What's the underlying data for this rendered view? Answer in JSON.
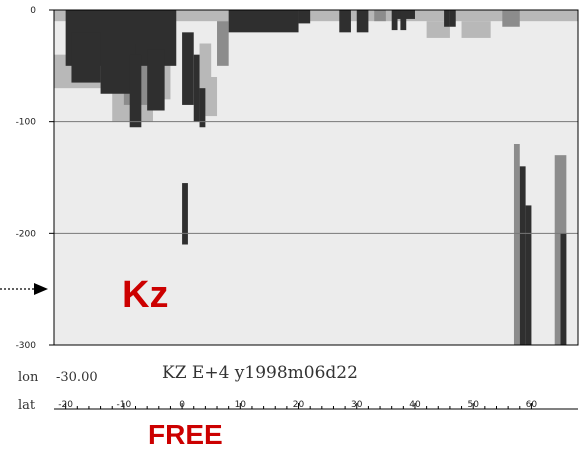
{
  "chart_data": {
    "type": "heatmap",
    "title": "KZ E+4 y1998m06d22",
    "colors": {
      "low": "#ececec",
      "mid": "#b8b8b8",
      "dark": "#8c8c8c",
      "darkest": "#2f2f2f",
      "annotation": "#cc0000",
      "frame": "#000000"
    },
    "xlabel": "lat",
    "ylabel": "",
    "xlim": [
      -22,
      68
    ],
    "ylim": [
      -300,
      0
    ],
    "x_ticks": [
      -20,
      -10,
      0,
      10,
      20,
      30,
      40,
      50,
      60
    ],
    "y_ticks": [
      0,
      -100,
      -200,
      -300
    ],
    "grid": "horizontal",
    "fixed_coordinate": {
      "label": "lon",
      "value": "-30.00"
    },
    "series": [],
    "regions": [
      {
        "level": "low",
        "x": [
          -22,
          68
        ],
        "y": [
          0,
          -300
        ]
      },
      {
        "level": "mid",
        "x": [
          -22,
          68
        ],
        "y": [
          0,
          -10
        ]
      },
      {
        "level": "mid",
        "x": [
          -22,
          -14
        ],
        "y": [
          -40,
          -70
        ]
      },
      {
        "level": "mid",
        "x": [
          -12,
          -5
        ],
        "y": [
          -50,
          -100
        ]
      },
      {
        "level": "mid",
        "x": [
          -8,
          -2
        ],
        "y": [
          -40,
          -80
        ]
      },
      {
        "level": "mid",
        "x": [
          3,
          5
        ],
        "y": [
          -30,
          -90
        ]
      },
      {
        "level": "mid",
        "x": [
          4,
          6
        ],
        "y": [
          -60,
          -95
        ]
      },
      {
        "level": "mid",
        "x": [
          42,
          46
        ],
        "y": [
          -10,
          -25
        ]
      },
      {
        "level": "mid",
        "x": [
          48,
          53
        ],
        "y": [
          -10,
          -25
        ]
      },
      {
        "level": "dark",
        "x": [
          -10,
          -6
        ],
        "y": [
          -30,
          -85
        ]
      },
      {
        "level": "dark",
        "x": [
          6,
          8
        ],
        "y": [
          -10,
          -50
        ]
      },
      {
        "level": "dark",
        "x": [
          33,
          35
        ],
        "y": [
          0,
          -10
        ]
      },
      {
        "level": "dark",
        "x": [
          55,
          58
        ],
        "y": [
          0,
          -15
        ]
      },
      {
        "level": "dark",
        "x": [
          57,
          58
        ],
        "y": [
          -120,
          -300
        ]
      },
      {
        "level": "dark",
        "x": [
          64,
          66
        ],
        "y": [
          -130,
          -300
        ]
      },
      {
        "level": "darkest",
        "x": [
          -20,
          -1
        ],
        "y": [
          0,
          -50
        ]
      },
      {
        "level": "darkest",
        "x": [
          -19,
          -14
        ],
        "y": [
          -20,
          -65
        ]
      },
      {
        "level": "darkest",
        "x": [
          -14,
          -8
        ],
        "y": [
          -30,
          -75
        ]
      },
      {
        "level": "darkest",
        "x": [
          -9,
          -7
        ],
        "y": [
          -40,
          -105
        ]
      },
      {
        "level": "darkest",
        "x": [
          -6,
          -3
        ],
        "y": [
          -35,
          -90
        ]
      },
      {
        "level": "darkest",
        "x": [
          0,
          2
        ],
        "y": [
          -20,
          -85
        ]
      },
      {
        "level": "darkest",
        "x": [
          2,
          3
        ],
        "y": [
          -40,
          -100
        ]
      },
      {
        "level": "darkest",
        "x": [
          3,
          4
        ],
        "y": [
          -70,
          -105
        ]
      },
      {
        "level": "darkest",
        "x": [
          0,
          1
        ],
        "y": [
          -155,
          -210
        ]
      },
      {
        "level": "darkest",
        "x": [
          8,
          20
        ],
        "y": [
          0,
          -20
        ]
      },
      {
        "level": "darkest",
        "x": [
          20,
          22
        ],
        "y": [
          0,
          -12
        ]
      },
      {
        "level": "darkest",
        "x": [
          27,
          29
        ],
        "y": [
          0,
          -20
        ]
      },
      {
        "level": "darkest",
        "x": [
          30,
          32
        ],
        "y": [
          0,
          -20
        ]
      },
      {
        "level": "darkest",
        "x": [
          36,
          37
        ],
        "y": [
          0,
          -18
        ]
      },
      {
        "level": "darkest",
        "x": [
          37,
          40
        ],
        "y": [
          0,
          -8
        ]
      },
      {
        "level": "darkest",
        "x": [
          37.5,
          38.5
        ],
        "y": [
          0,
          -18
        ]
      },
      {
        "level": "darkest",
        "x": [
          45,
          46
        ],
        "y": [
          0,
          -15
        ]
      },
      {
        "level": "darkest",
        "x": [
          46,
          47
        ],
        "y": [
          0,
          -15
        ]
      },
      {
        "level": "darkest",
        "x": [
          58,
          59
        ],
        "y": [
          -140,
          -300
        ]
      },
      {
        "level": "darkest",
        "x": [
          59,
          60
        ],
        "y": [
          -175,
          -300
        ]
      },
      {
        "level": "darkest",
        "x": [
          65,
          66
        ],
        "y": [
          -200,
          -300
        ]
      }
    ]
  },
  "annotations": {
    "kz": "Kz",
    "free": "FREE"
  }
}
